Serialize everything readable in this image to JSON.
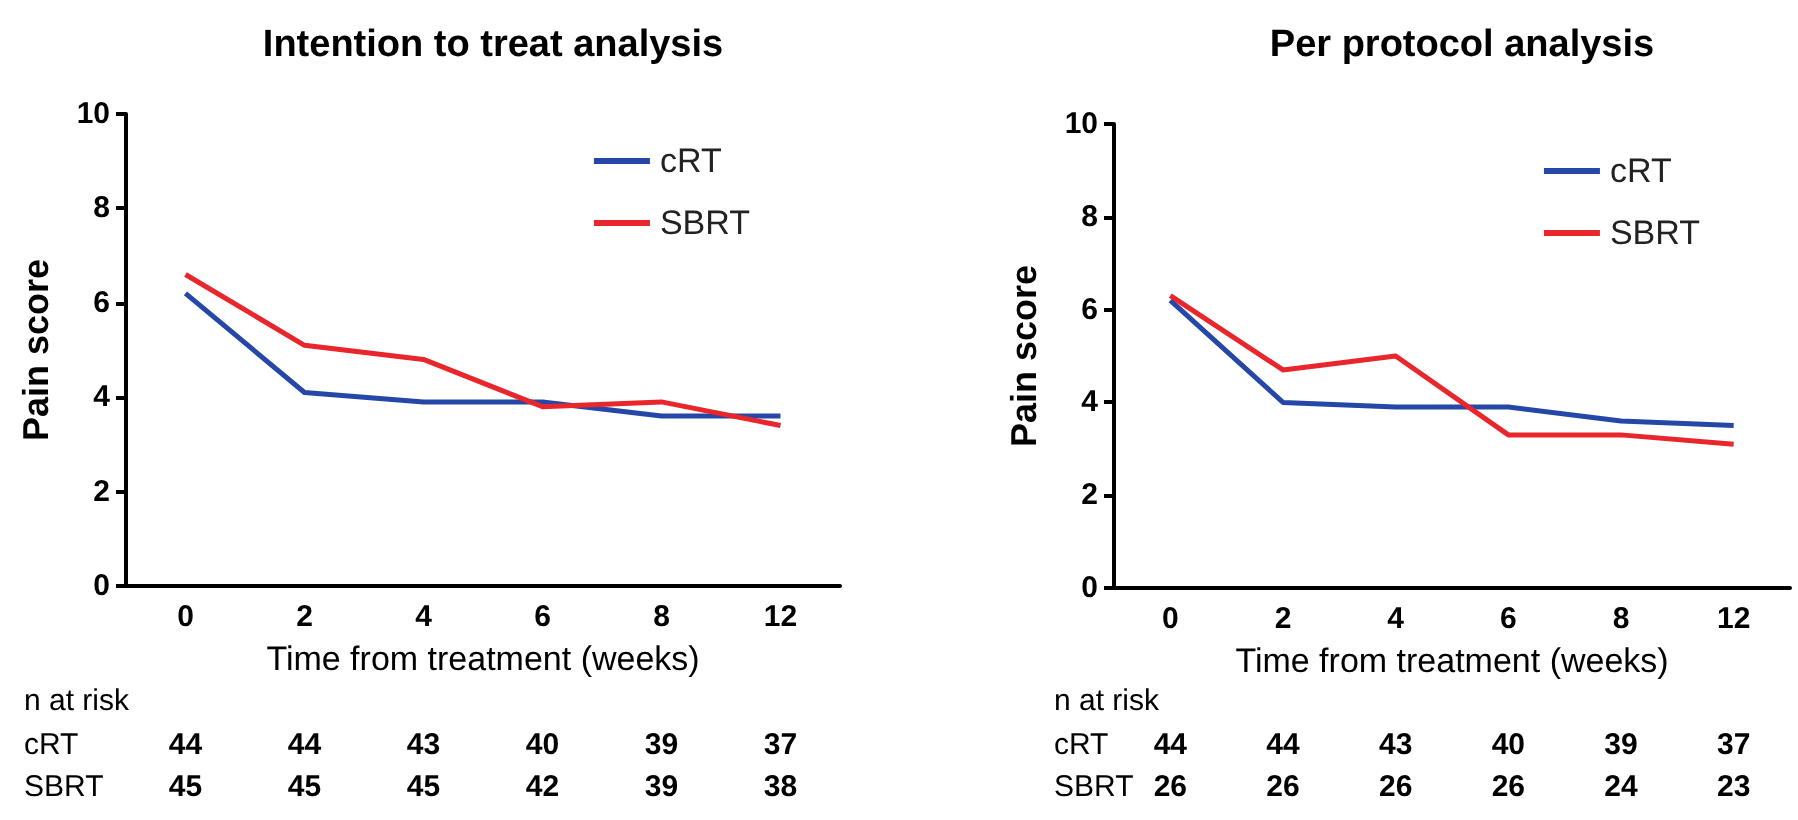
{
  "chart_data": [
    {
      "type": "line",
      "title": "Intention to treat analysis",
      "xlabel": "Time from treatment (weeks)",
      "ylabel": "Pain score",
      "categories": [
        "0",
        "2",
        "4",
        "6",
        "8",
        "12"
      ],
      "series": [
        {
          "name": "cRT",
          "color": "#2447a8",
          "values": [
            6.2,
            4.1,
            3.9,
            3.9,
            3.6,
            3.6
          ]
        },
        {
          "name": "SBRT",
          "color": "#e8262b",
          "values": [
            6.6,
            5.1,
            4.8,
            3.8,
            3.9,
            3.4
          ]
        }
      ],
      "ylim": [
        0,
        10
      ],
      "yticks": [
        0,
        2,
        4,
        6,
        8,
        10
      ],
      "grid": false,
      "legend": "top right",
      "marker": "none",
      "line_style": "solid",
      "annotations": [
        "n at risk",
        "cRT",
        "44",
        "44",
        "43",
        "40",
        "39",
        "37",
        "SBRT",
        "45",
        "45",
        "45",
        "42",
        "39",
        "38"
      ]
    },
    {
      "type": "line",
      "title": "Per protocol analysis",
      "xlabel": "Time from treatment (weeks)",
      "ylabel": "Pain score",
      "categories": [
        "0",
        "2",
        "4",
        "6",
        "8",
        "12"
      ],
      "series": [
        {
          "name": "cRT",
          "color": "#2447a8",
          "values": [
            6.2,
            4.0,
            3.9,
            3.9,
            3.6,
            3.5
          ]
        },
        {
          "name": "SBRT",
          "color": "#e8262b",
          "values": [
            6.3,
            4.7,
            5.0,
            3.3,
            3.3,
            3.1
          ]
        }
      ],
      "ylim": [
        0,
        10
      ],
      "yticks": [
        0,
        2,
        4,
        6,
        8,
        10
      ],
      "grid": false,
      "legend": "top right",
      "marker": "none",
      "line_style": "solid",
      "annotations": [
        "n at risk",
        "cRT",
        "44",
        "44",
        "43",
        "40",
        "39",
        "37",
        "SBRT",
        "26",
        "26",
        "26",
        "26",
        "24",
        "23"
      ]
    }
  ]
}
